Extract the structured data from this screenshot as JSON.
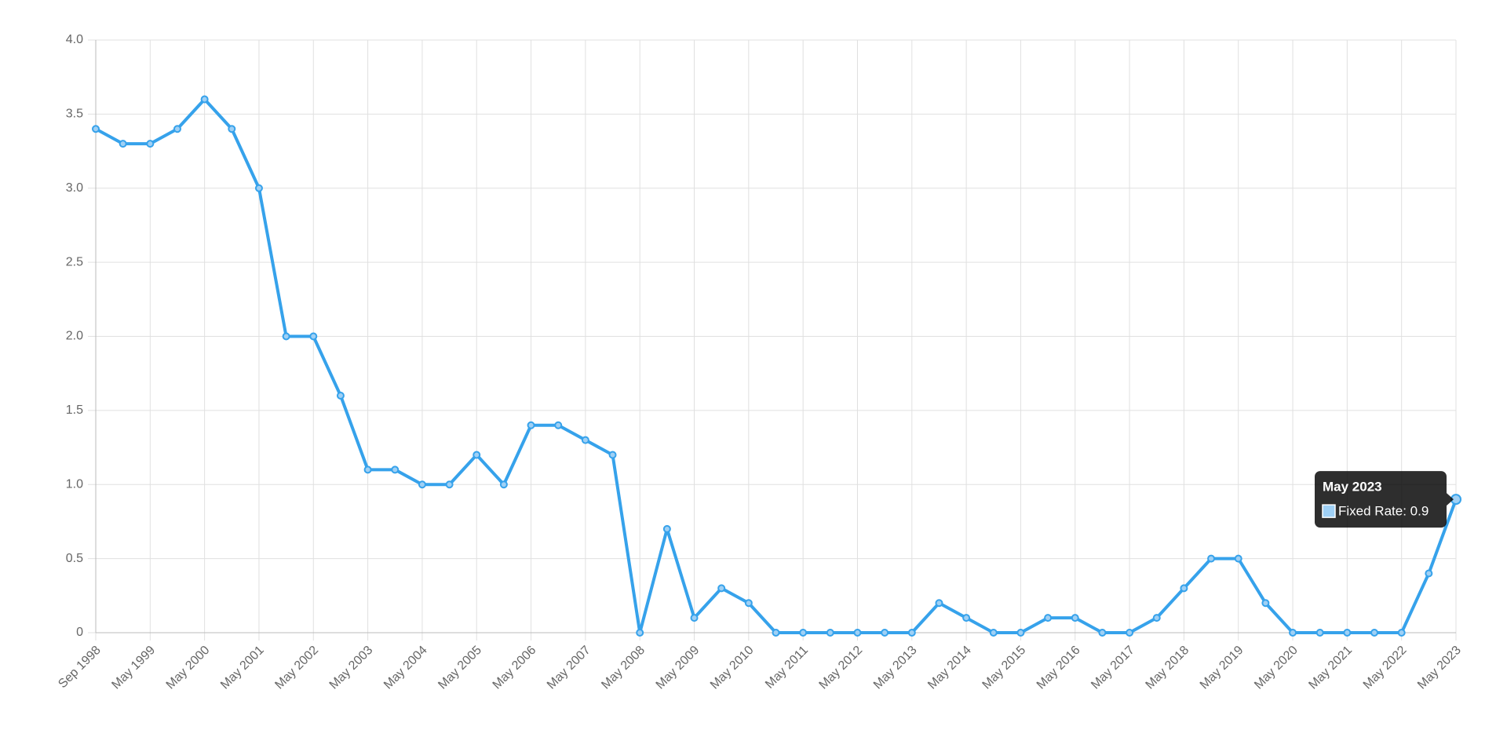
{
  "chart_data": {
    "type": "line",
    "categories": [
      "Sep 1998",
      null,
      "May 1999",
      null,
      "May 2000",
      null,
      "May 2001",
      null,
      "May 2002",
      null,
      "May 2003",
      null,
      "May 2004",
      null,
      "May 2005",
      null,
      "May 2006",
      null,
      "May 2007",
      null,
      "May 2008",
      null,
      "May 2009",
      null,
      "May 2010",
      null,
      "May 2011",
      null,
      "May 2012",
      null,
      "May 2013",
      null,
      "May 2014",
      null,
      "May 2015",
      null,
      "May 2016",
      null,
      "May 2017",
      null,
      "May 2018",
      null,
      "May 2019",
      null,
      "May 2020",
      null,
      "May 2021",
      null,
      "May 2022",
      null,
      "May 2023"
    ],
    "series": [
      {
        "name": "Fixed Rate",
        "color": "#36a2eb",
        "values": [
          3.4,
          3.3,
          3.3,
          3.4,
          3.6,
          3.4,
          3.0,
          2.0,
          2.0,
          1.6,
          1.1,
          1.1,
          1.0,
          1.0,
          1.2,
          1.0,
          1.4,
          1.4,
          1.3,
          1.2,
          0,
          0.7,
          0.1,
          0.3,
          0.2,
          0,
          0,
          0,
          0,
          0,
          0,
          0.2,
          0.1,
          0,
          0,
          0.1,
          0.1,
          0,
          0,
          0.1,
          0.3,
          0.5,
          0.5,
          0.2,
          0,
          0,
          0,
          0,
          0,
          0.4,
          0.9
        ]
      }
    ],
    "ylim": [
      0,
      4
    ],
    "yticks": [
      0,
      0.5,
      {
        "value": 1,
        "label": "1.0"
      },
      1.5,
      {
        "value": 2,
        "label": "2.0"
      },
      2.5,
      {
        "value": 3,
        "label": "3.0"
      },
      3.5,
      {
        "value": 4,
        "label": "4.0"
      }
    ],
    "grid": true,
    "tooltip": {
      "title": "May 2023",
      "text": "Fixed Rate: 0.9"
    }
  }
}
